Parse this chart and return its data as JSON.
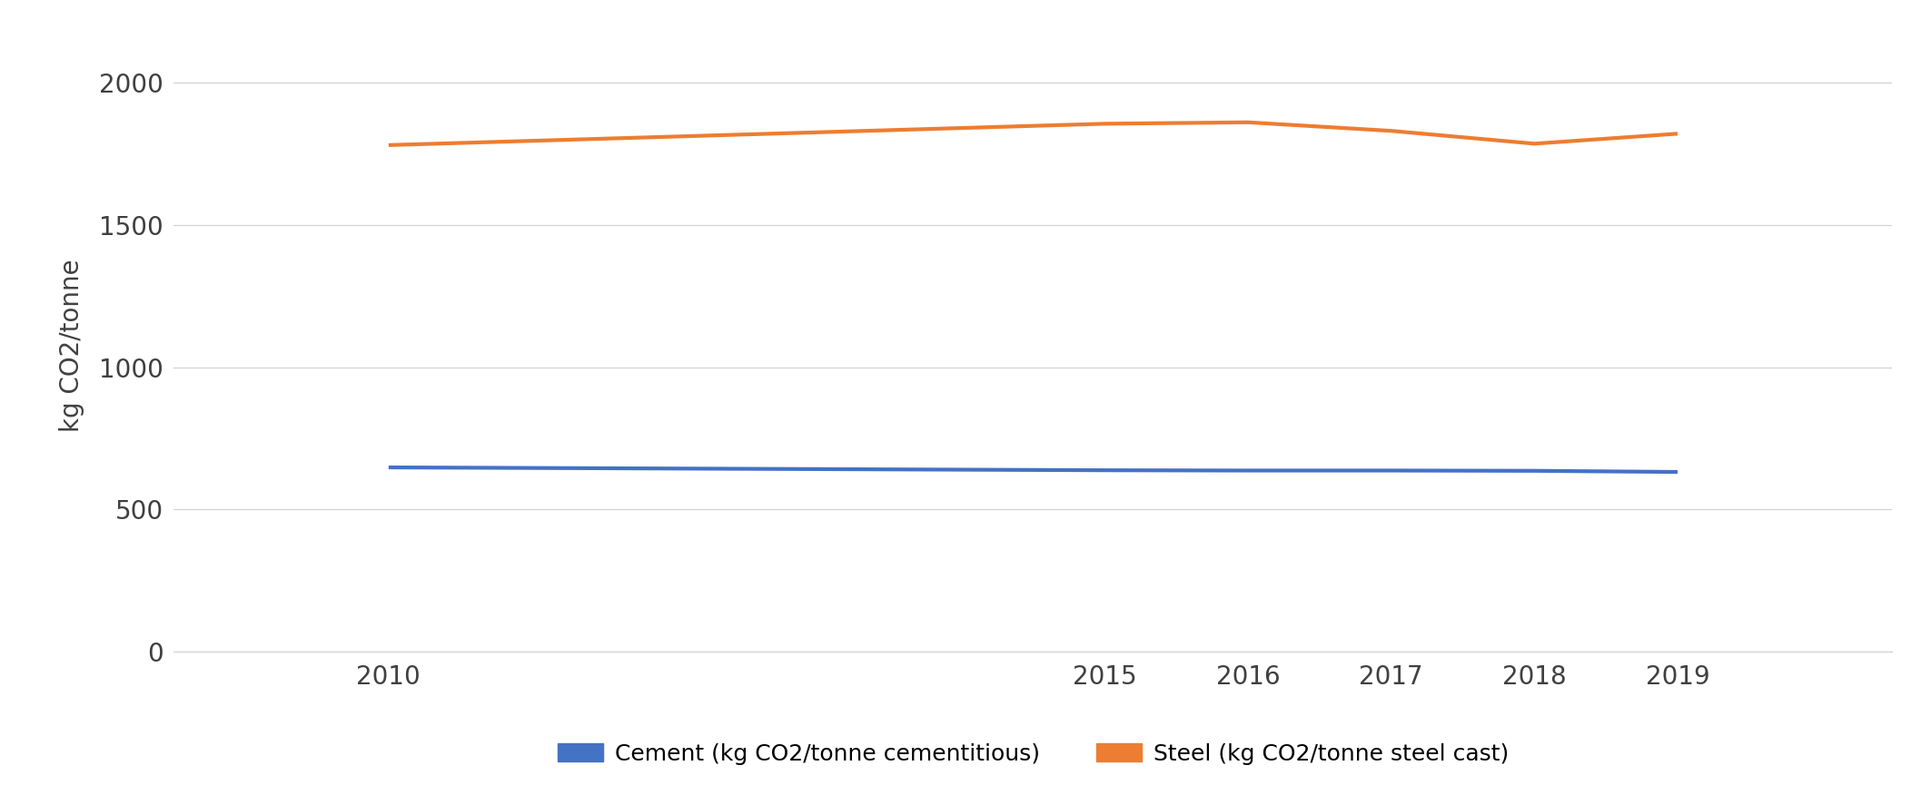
{
  "years": [
    2010,
    2015,
    2016,
    2017,
    2018,
    2019
  ],
  "cement_values": [
    648,
    638,
    637,
    637,
    636,
    632
  ],
  "steel_values": [
    1780,
    1855,
    1860,
    1830,
    1785,
    1820
  ],
  "cement_color": "#4472C4",
  "steel_color": "#ED7D31",
  "ylabel": "kg CO2/tonne",
  "ylim": [
    0,
    2150
  ],
  "yticks": [
    0,
    500,
    1000,
    1500,
    2000
  ],
  "xlim": [
    2008.5,
    2020.5
  ],
  "cement_label": "Cement (kg CO2/tonne cementitious)",
  "steel_label": "Steel (kg CO2/tonne steel cast)",
  "line_width": 3.0,
  "background_color": "#ffffff",
  "grid_color": "#d3d3d3",
  "tick_label_fontsize": 20,
  "ylabel_fontsize": 20,
  "legend_fontsize": 18
}
